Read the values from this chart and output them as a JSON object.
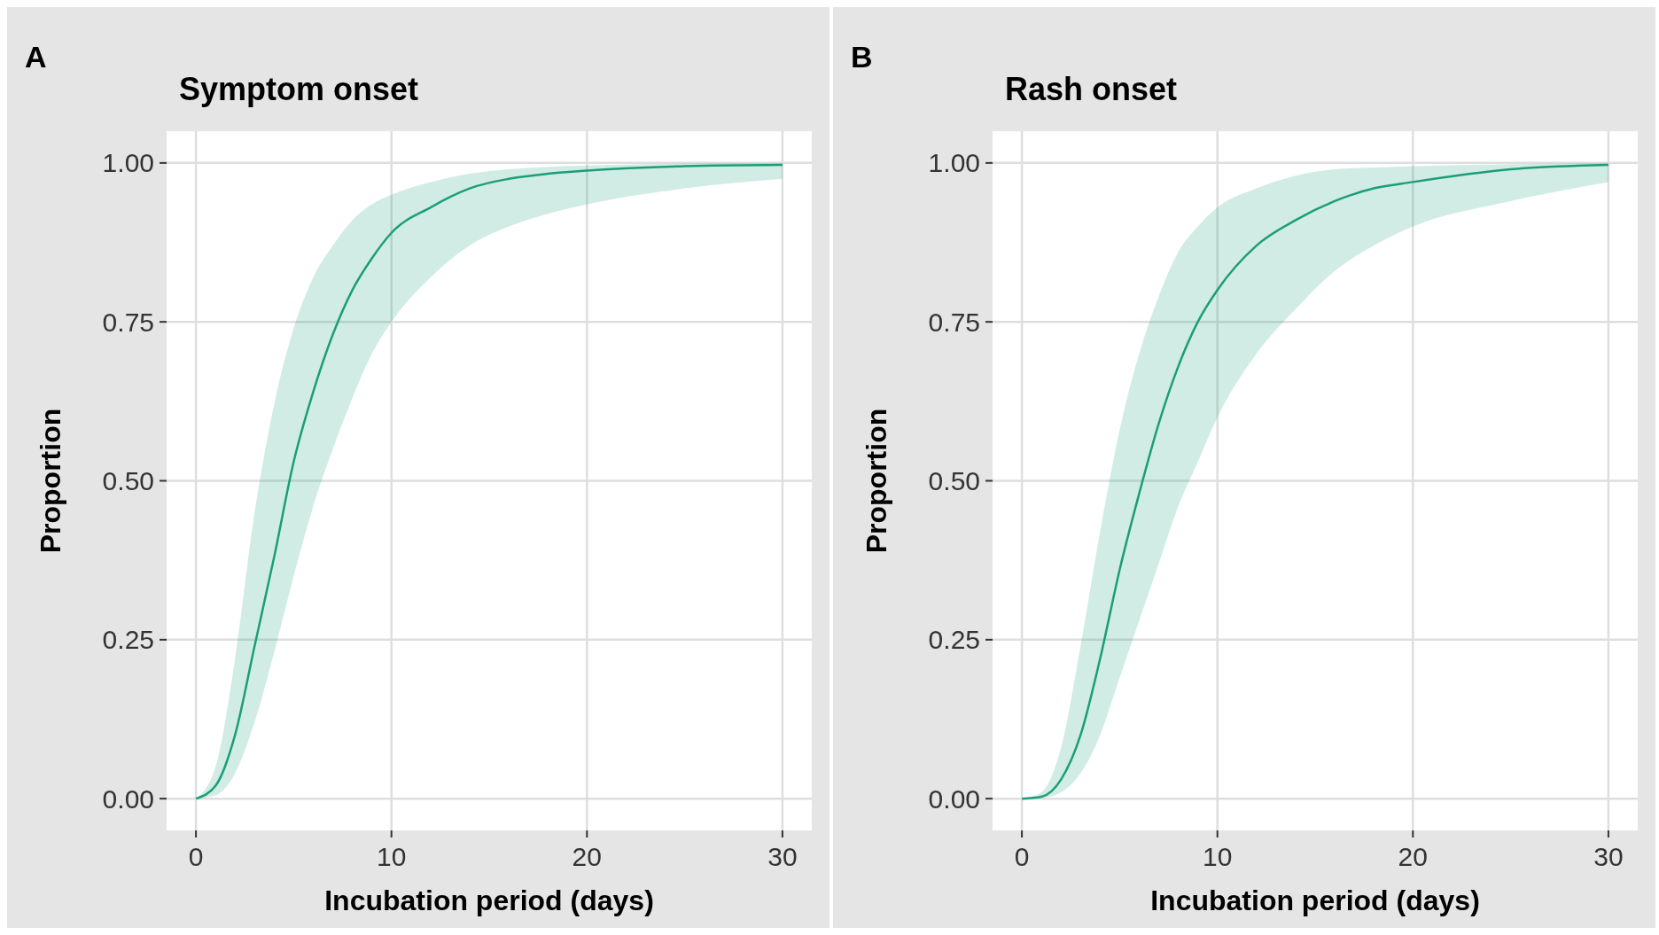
{
  "chart_data": [
    {
      "type": "line",
      "title": "Symptom onset",
      "xlabel": "Incubation period (days)",
      "ylabel": "Proportion",
      "annotations": [
        "A"
      ],
      "x": [
        0,
        1,
        2,
        3,
        4,
        5,
        6,
        7,
        8,
        9,
        10,
        12,
        14,
        16,
        18,
        20,
        25,
        30
      ],
      "xlim": [
        -1.5,
        31.5
      ],
      "xticks": [
        0,
        10,
        20,
        30
      ],
      "ylim": [
        -0.05,
        1.05
      ],
      "yticks": [
        {
          "value": 0,
          "label": "0.00"
        },
        {
          "value": 0.25,
          "label": "0.25"
        },
        {
          "value": 0.5,
          "label": "0.50"
        },
        {
          "value": 0.75,
          "label": "0.75"
        },
        {
          "value": 1,
          "label": "1.00"
        }
      ],
      "grid": true,
      "series": [
        {
          "color": "#1b9e77",
          "values": [
            0,
            0.02,
            0.1,
            0.24,
            0.38,
            0.53,
            0.64,
            0.73,
            0.8,
            0.85,
            0.89,
            0.93,
            0.96,
            0.975,
            0.983,
            0.988,
            0.995,
            0.997
          ],
          "lower": [
            0,
            0.005,
            0.04,
            0.12,
            0.23,
            0.35,
            0.46,
            0.55,
            0.63,
            0.7,
            0.75,
            0.82,
            0.87,
            0.9,
            0.92,
            0.935,
            0.96,
            0.975
          ],
          "upper": [
            0,
            0.05,
            0.22,
            0.45,
            0.62,
            0.74,
            0.82,
            0.87,
            0.91,
            0.935,
            0.95,
            0.97,
            0.983,
            0.99,
            0.994,
            0.996,
            0.999,
            1.0
          ]
        }
      ]
    },
    {
      "type": "line",
      "title": "Rash onset",
      "xlabel": "Incubation period (days)",
      "ylabel": "Proportion",
      "annotations": [
        "B"
      ],
      "x": [
        0,
        1,
        2,
        3,
        4,
        5,
        6,
        7,
        8,
        9,
        10,
        12,
        14,
        16,
        18,
        20,
        25,
        30
      ],
      "xlim": [
        -1.5,
        31.5
      ],
      "xticks": [
        0,
        10,
        20,
        30
      ],
      "ylim": [
        -0.05,
        1.05
      ],
      "yticks": [
        {
          "value": 0,
          "label": "0.00"
        },
        {
          "value": 0.25,
          "label": "0.25"
        },
        {
          "value": 0.5,
          "label": "0.50"
        },
        {
          "value": 0.75,
          "label": "0.75"
        },
        {
          "value": 1,
          "label": "1.00"
        }
      ],
      "grid": true,
      "series": [
        {
          "color": "#1b9e77",
          "values": [
            0,
            0.003,
            0.03,
            0.1,
            0.22,
            0.36,
            0.48,
            0.59,
            0.68,
            0.75,
            0.8,
            0.87,
            0.91,
            0.94,
            0.96,
            0.97,
            0.99,
            0.997
          ],
          "lower": [
            0,
            0.001,
            0.01,
            0.04,
            0.1,
            0.19,
            0.28,
            0.37,
            0.46,
            0.53,
            0.6,
            0.7,
            0.77,
            0.83,
            0.87,
            0.9,
            0.94,
            0.97
          ],
          "upper": [
            0,
            0.01,
            0.08,
            0.24,
            0.42,
            0.58,
            0.7,
            0.79,
            0.86,
            0.9,
            0.93,
            0.96,
            0.98,
            0.99,
            0.993,
            0.995,
            0.998,
            1.0
          ]
        }
      ]
    }
  ]
}
